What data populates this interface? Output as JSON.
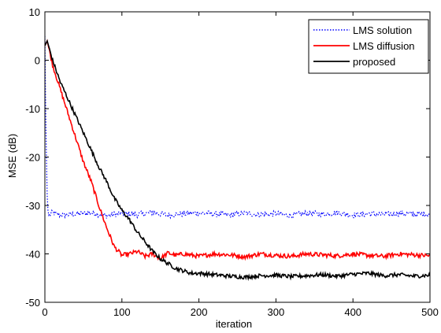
{
  "chart_data": {
    "type": "line",
    "title": "",
    "xlabel": "iteration",
    "ylabel": "MSE (dB)",
    "xlim": [
      0,
      500
    ],
    "ylim": [
      -50,
      10
    ],
    "xticks": [
      0,
      100,
      200,
      300,
      400,
      500
    ],
    "yticks": [
      10,
      0,
      -10,
      -20,
      -30,
      -40,
      -50
    ],
    "grid": false,
    "legend_position": "top-right",
    "series": [
      {
        "name": "LMS solution",
        "color": "#0000ff",
        "style": "dotted",
        "x": [
          0,
          1,
          2,
          3,
          4,
          5,
          10,
          20,
          40,
          60,
          80,
          100,
          120,
          140,
          160,
          180,
          200,
          220,
          240,
          260,
          280,
          300,
          320,
          340,
          360,
          380,
          400,
          420,
          440,
          460,
          480,
          500
        ],
        "y": [
          5,
          -10,
          -20,
          -28,
          -31,
          -32,
          -31.5,
          -32,
          -31.8,
          -31.5,
          -32.1,
          -31.6,
          -31.9,
          -31.4,
          -32,
          -31.7,
          -31.5,
          -31.8,
          -32,
          -31.6,
          -31.9,
          -31.7,
          -32.1,
          -31.6,
          -31.8,
          -31.5,
          -32,
          -31.7,
          -31.9,
          -31.6,
          -31.8,
          -31.7
        ]
      },
      {
        "name": "LMS diffusion",
        "color": "#ff0000",
        "style": "solid",
        "x": [
          0,
          3,
          10,
          20,
          30,
          40,
          50,
          60,
          70,
          80,
          90,
          100,
          110,
          120,
          130,
          140,
          150,
          160,
          170,
          180,
          200,
          220,
          240,
          260,
          280,
          300,
          320,
          340,
          360,
          380,
          400,
          420,
          440,
          460,
          480,
          500
        ],
        "y": [
          3,
          4,
          -1,
          -6,
          -11,
          -16,
          -21,
          -25,
          -30,
          -34.5,
          -38.5,
          -40.3,
          -40,
          -39.5,
          -40.5,
          -40,
          -41,
          -39.8,
          -40.3,
          -40,
          -40.5,
          -40,
          -40.2,
          -40.6,
          -40,
          -40.3,
          -40.5,
          -40,
          -40.2,
          -40.4,
          -40,
          -40.3,
          -40.5,
          -40,
          -40.2,
          -40.4
        ]
      },
      {
        "name": "proposed",
        "color": "#000000",
        "style": "solid",
        "x": [
          0,
          3,
          10,
          20,
          30,
          40,
          50,
          60,
          70,
          80,
          90,
          100,
          110,
          120,
          130,
          140,
          150,
          160,
          170,
          180,
          190,
          200,
          220,
          240,
          260,
          280,
          300,
          320,
          340,
          360,
          380,
          400,
          420,
          440,
          460,
          480,
          500
        ],
        "y": [
          3,
          4,
          0,
          -4.5,
          -8,
          -11.5,
          -15,
          -18.5,
          -22,
          -25,
          -28.5,
          -31,
          -33,
          -35.5,
          -37.5,
          -39.5,
          -41,
          -42,
          -43,
          -43.5,
          -44,
          -44,
          -44.3,
          -44.6,
          -44.8,
          -44.5,
          -44.4,
          -44.7,
          -44.5,
          -44.3,
          -44.6,
          -44.2,
          -44,
          -44.5,
          -44.3,
          -44.6,
          -44.4
        ]
      }
    ]
  }
}
